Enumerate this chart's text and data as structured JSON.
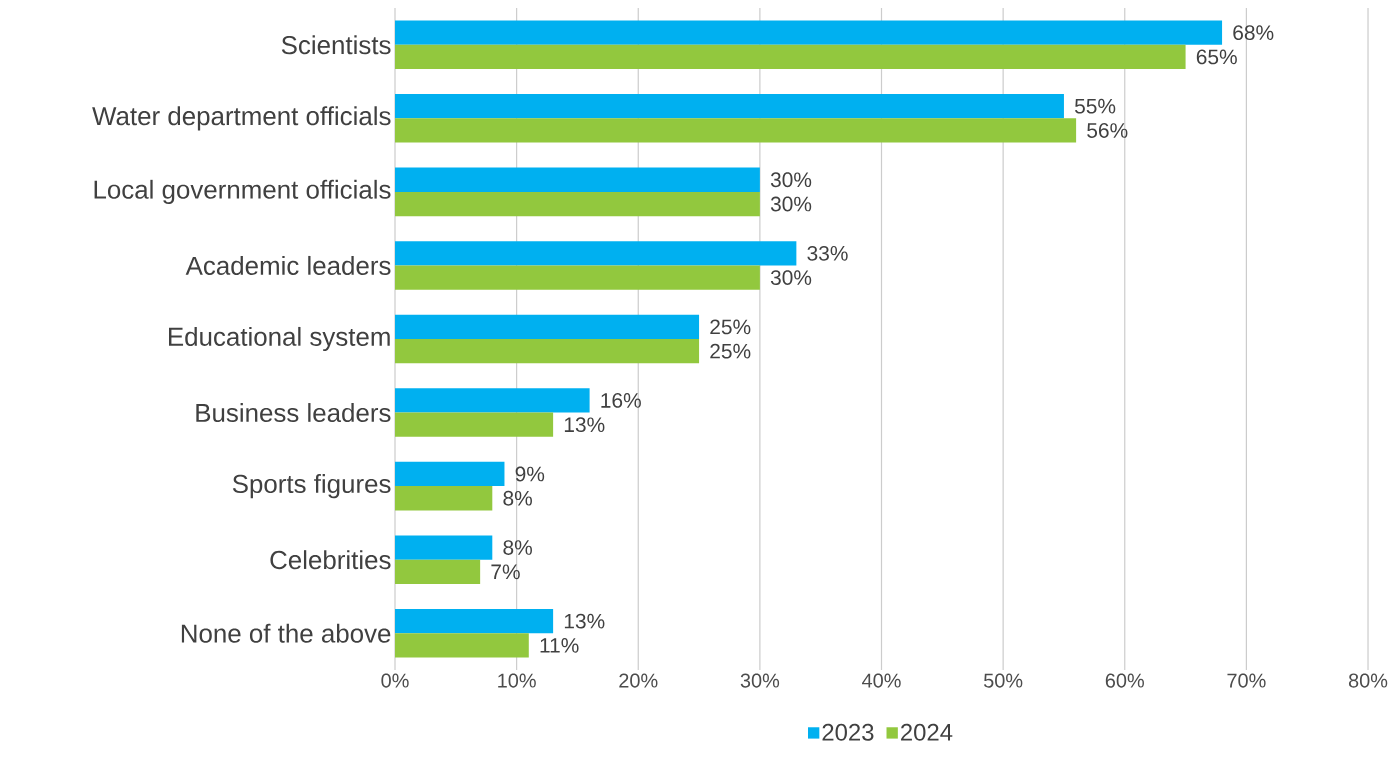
{
  "chart_data": {
    "type": "bar",
    "orientation": "horizontal",
    "categories": [
      "Scientists",
      "Water department officials",
      "Local government officials",
      "Academic leaders",
      "Educational system",
      "Business leaders",
      "Sports figures",
      "Celebrities",
      "None of the above"
    ],
    "series": [
      {
        "name": "2023",
        "color": "#00b0f0",
        "values": [
          68,
          55,
          30,
          33,
          25,
          16,
          9,
          8,
          13
        ],
        "value_labels": [
          "68%",
          "55%",
          "30%",
          "33%",
          "25%",
          "16%",
          "9%",
          "8%",
          "13%"
        ]
      },
      {
        "name": "2024",
        "color": "#92c83e",
        "values": [
          65,
          56,
          30,
          30,
          25,
          13,
          8,
          7,
          11
        ],
        "value_labels": [
          "65%",
          "56%",
          "30%",
          "30%",
          "25%",
          "13%",
          "8%",
          "7%",
          "11%"
        ]
      }
    ],
    "xlim": [
      0,
      80
    ],
    "xticks": [
      {
        "value": 0,
        "label": "0%"
      },
      {
        "value": 10,
        "label": "10%"
      },
      {
        "value": 20,
        "label": "20%"
      },
      {
        "value": 30,
        "label": "30%"
      },
      {
        "value": 40,
        "label": "40%"
      },
      {
        "value": 50,
        "label": "50%"
      },
      {
        "value": 60,
        "label": "60%"
      },
      {
        "value": 70,
        "label": "70%"
      },
      {
        "value": 80,
        "label": "80%"
      }
    ],
    "grid": "x",
    "legend": "bottom"
  }
}
